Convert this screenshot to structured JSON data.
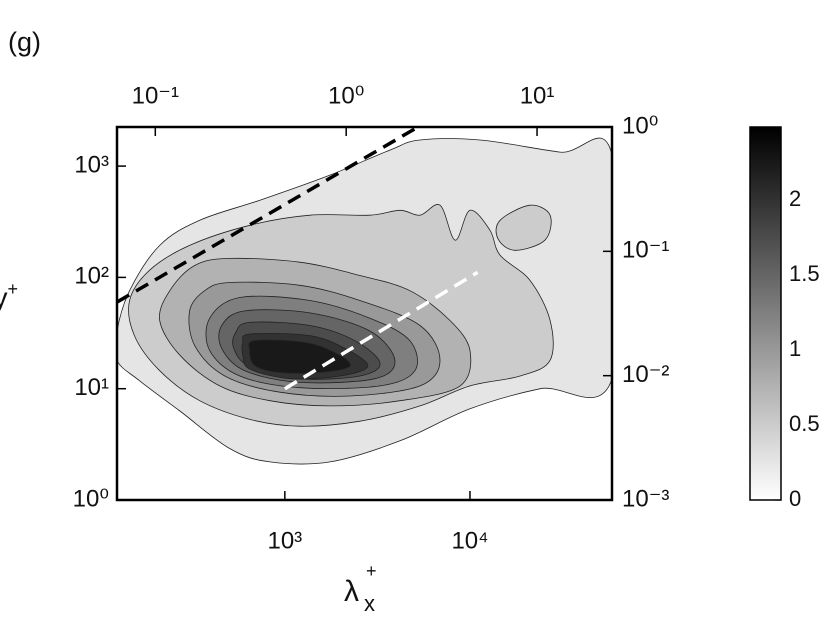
{
  "chart_data": {
    "type": "contour",
    "title": "(g)",
    "xlabel": {
      "base": "λ",
      "sub": "x",
      "sup": "+"
    },
    "ylabel": {
      "base": "y",
      "sup": "+"
    },
    "xscale": "log",
    "yscale": "log",
    "xlim": [
      124,
      58500
    ],
    "xticks": [
      {
        "value": 1000,
        "label": "10³"
      },
      {
        "value": 10000,
        "label": "10⁴"
      }
    ],
    "ylim": [
      1,
      2245
    ],
    "yticks": [
      {
        "value": 1,
        "label": "10⁰"
      },
      {
        "value": 10,
        "label": "10¹"
      },
      {
        "value": 100,
        "label": "10²"
      },
      {
        "value": 1000,
        "label": "10³"
      }
    ],
    "x2lim": [
      0.063,
      24.7
    ],
    "x2ticks": [
      {
        "value": 0.1,
        "label": "10⁻¹"
      },
      {
        "value": 1,
        "label": "10⁰"
      },
      {
        "value": 10,
        "label": "10¹"
      }
    ],
    "y2lim": [
      0.001,
      1
    ],
    "y2ticks": [
      {
        "value": 0.001,
        "label": "10⁻³"
      },
      {
        "value": 0.01,
        "label": "10⁻²"
      },
      {
        "value": 0.1,
        "label": "10⁻¹"
      },
      {
        "value": 1,
        "label": "10⁰"
      }
    ],
    "colorbar": {
      "lim": [
        0,
        2.49
      ],
      "ticks": [
        0,
        0.5,
        1,
        1.5,
        2
      ],
      "colors": [
        "#ffffff",
        "#000000"
      ]
    },
    "contours": [
      {
        "level": 0.25,
        "x": [
          58500,
          30720,
          11340,
          5372,
          3695,
          1751,
          733,
          347,
          211,
          145,
          124,
          124,
          164,
          271,
          504,
          830,
          1751,
          4187,
          10000,
          23940,
          58500
        ],
        "y": [
          1256,
          1337,
          1715,
          1715,
          1393,
          830,
          494,
          326,
          194,
          76,
          33,
          18,
          11.8,
          6.3,
          2.9,
          2.2,
          2.2,
          3.4,
          6.6,
          10,
          12.3
        ]
      },
      {
        "level": 0.5,
        "x": [
          2880,
          4187,
          5372,
          6891,
          8320,
          10000,
          12830,
          14550,
          21100,
          27100,
          27100,
          18660,
          10000,
          5372,
          2544,
          1205,
          647,
          347,
          211,
          154,
          145,
          186,
          306,
          647,
          1365
        ],
        "y": [
          362,
          401,
          362,
          445,
          216,
          401,
          265,
          158,
          94,
          41,
          18,
          13,
          10.6,
          7,
          5.1,
          4.6,
          5.3,
          7.8,
          14.5,
          30,
          62,
          116,
          194,
          294,
          362
        ]
      },
      {
        "level": 0.5,
        "x": [
          14550,
          21100,
          27100,
          25400,
          17450,
          14140
        ],
        "y": [
          326,
          445,
          362,
          216,
          175,
          224
        ]
      },
      {
        "level": 0.75,
        "x": [
          504,
          1205,
          2544,
          4740,
          7800,
          10000,
          8841,
          4187,
          1751,
          830,
          445,
          271,
          211,
          239,
          326
        ],
        "y": [
          148,
          137,
          104,
          76,
          41,
          22,
          10.6,
          7.8,
          7,
          7.8,
          10.6,
          20,
          41,
          76,
          128
        ]
      },
      {
        "level": 1,
        "x": [
          504,
          1205,
          2544,
          5372,
          6891,
          5372,
          2245,
          940,
          474,
          326,
          306,
          369
        ],
        "y": [
          90,
          85,
          62,
          37,
          18,
          10.6,
          8.6,
          9.3,
          13,
          24.4,
          50,
          76
        ]
      },
      {
        "level": 1.25,
        "x": [
          571,
          1365,
          2880,
          4740,
          5040,
          3264,
          1205,
          571,
          393,
          393
        ],
        "y": [
          66,
          62,
          43,
          27,
          14.5,
          10.6,
          10.2,
          13,
          22,
          43
        ]
      },
      {
        "level": 1.5,
        "x": [
          608,
          1365,
          2880,
          3930,
          3070,
          1205,
          608,
          456,
          456
        ],
        "y": [
          50,
          48,
          33,
          18,
          12.3,
          11.4,
          14.5,
          23,
          37
        ]
      },
      {
        "level": 1.75,
        "x": [
          647,
          1365,
          2390,
          3264,
          2544,
          1205,
          647,
          530,
          543
        ],
        "y": [
          39.4,
          37,
          27,
          17,
          13,
          12.3,
          15.8,
          23,
          32
        ]
      },
      {
        "level": 2,
        "x": [
          647,
          1365,
          2110,
          2810,
          1983,
          1064,
          647,
          593,
          593
        ],
        "y": [
          31,
          30,
          23,
          16,
          13,
          12.3,
          15,
          20,
          26
        ]
      },
      {
        "level": 2.25,
        "x": [
          688,
          1283,
          1865,
          2245,
          1546,
          940,
          688,
          647
        ],
        "y": [
          27,
          26,
          21,
          16,
          14,
          14,
          16.2,
          22
        ]
      }
    ],
    "lines": [
      {
        "color": "#000000",
        "linestyle": "dashed",
        "x": [
          124,
          5240
        ],
        "y": [
          60,
          2245
        ]
      },
      {
        "color": "#ffffff",
        "linestyle": "dashed",
        "x": [
          1000,
          11000
        ],
        "y": [
          10,
          111
        ]
      }
    ]
  }
}
